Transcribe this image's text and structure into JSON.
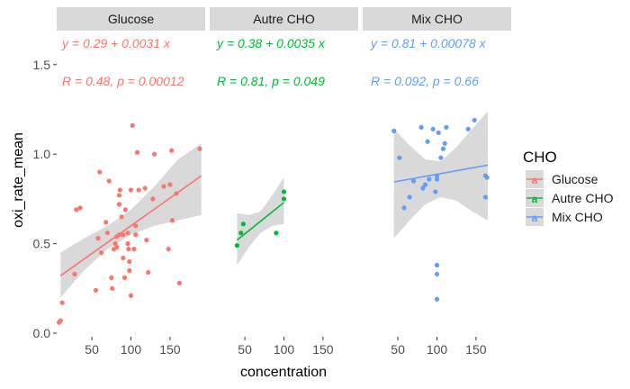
{
  "chart_data": {
    "type": "scatter",
    "facet_by": "CHO",
    "xlabel": "concentration",
    "ylabel": "oxi_rate_mean",
    "xlim": [
      5,
      195
    ],
    "ylim": [
      -0.02,
      1.68
    ],
    "x_ticks": [
      50,
      100,
      150
    ],
    "x_tick_labels": [
      "50",
      "100",
      "150"
    ],
    "y_ticks": [
      0.0,
      0.5,
      1.0,
      1.5
    ],
    "y_tick_labels": [
      "0.0",
      "0.5",
      "1.0",
      "1.5"
    ],
    "grid": false,
    "legend": {
      "title": "CHO",
      "position": "right",
      "entries": [
        "Glucose",
        "Autre CHO",
        "Mix CHO"
      ],
      "key_glyph": "a"
    },
    "panels": [
      {
        "name": "Glucose",
        "color": "#F8766D",
        "equation": "y = 0.29 + 0.0031 x",
        "stats": "R = 0.48, p = 0.00012",
        "fit": {
          "intercept": 0.29,
          "slope": 0.0031,
          "x_range": [
            10,
            190
          ]
        },
        "confidence_band": [
          {
            "x": 10,
            "lo": 0.2,
            "hi": 0.45
          },
          {
            "x": 40,
            "lo": 0.35,
            "hi": 0.53
          },
          {
            "x": 70,
            "lo": 0.47,
            "hi": 0.6
          },
          {
            "x": 100,
            "lo": 0.55,
            "hi": 0.69
          },
          {
            "x": 130,
            "lo": 0.6,
            "hi": 0.82
          },
          {
            "x": 160,
            "lo": 0.63,
            "hi": 0.97
          },
          {
            "x": 190,
            "lo": 0.66,
            "hi": 1.06
          }
        ],
        "points": [
          {
            "x": 10,
            "y": 0.07
          },
          {
            "x": 12,
            "y": 0.17
          },
          {
            "x": 8,
            "y": 0.06
          },
          {
            "x": 28,
            "y": 0.33
          },
          {
            "x": 30,
            "y": 0.69
          },
          {
            "x": 35,
            "y": 0.7
          },
          {
            "x": 55,
            "y": 0.24
          },
          {
            "x": 58,
            "y": 0.53
          },
          {
            "x": 60,
            "y": 0.9
          },
          {
            "x": 62,
            "y": 0.45
          },
          {
            "x": 68,
            "y": 0.62
          },
          {
            "x": 70,
            "y": 0.56
          },
          {
            "x": 72,
            "y": 0.85
          },
          {
            "x": 75,
            "y": 0.31
          },
          {
            "x": 76,
            "y": 0.25
          },
          {
            "x": 78,
            "y": 0.47
          },
          {
            "x": 80,
            "y": 0.5
          },
          {
            "x": 82,
            "y": 0.54
          },
          {
            "x": 82,
            "y": 0.48
          },
          {
            "x": 85,
            "y": 0.55
          },
          {
            "x": 85,
            "y": 0.72
          },
          {
            "x": 85,
            "y": 0.77
          },
          {
            "x": 86,
            "y": 0.8
          },
          {
            "x": 88,
            "y": 0.65
          },
          {
            "x": 90,
            "y": 0.55
          },
          {
            "x": 90,
            "y": 0.42
          },
          {
            "x": 92,
            "y": 0.31
          },
          {
            "x": 93,
            "y": 0.69
          },
          {
            "x": 96,
            "y": 0.56
          },
          {
            "x": 96,
            "y": 0.5
          },
          {
            "x": 97,
            "y": 0.47
          },
          {
            "x": 98,
            "y": 0.4
          },
          {
            "x": 98,
            "y": 0.35
          },
          {
            "x": 100,
            "y": 0.21
          },
          {
            "x": 100,
            "y": 0.8
          },
          {
            "x": 102,
            "y": 1.16
          },
          {
            "x": 104,
            "y": 0.47
          },
          {
            "x": 106,
            "y": 0.6
          },
          {
            "x": 106,
            "y": 0.55
          },
          {
            "x": 108,
            "y": 1.01
          },
          {
            "x": 110,
            "y": 0.8
          },
          {
            "x": 118,
            "y": 0.81
          },
          {
            "x": 120,
            "y": 0.52
          },
          {
            "x": 122,
            "y": 0.34
          },
          {
            "x": 128,
            "y": 0.75
          },
          {
            "x": 130,
            "y": 1.0
          },
          {
            "x": 142,
            "y": 0.82
          },
          {
            "x": 148,
            "y": 0.47
          },
          {
            "x": 150,
            "y": 0.83
          },
          {
            "x": 152,
            "y": 1.02
          },
          {
            "x": 153,
            "y": 0.63
          },
          {
            "x": 158,
            "y": 0.78
          },
          {
            "x": 162,
            "y": 0.28
          },
          {
            "x": 188,
            "y": 1.03
          }
        ]
      },
      {
        "name": "Autre CHO",
        "color": "#00BA38",
        "equation": "y = 0.38 + 0.0035 x",
        "stats": "R = 0.81, p = 0.049",
        "fit": {
          "intercept": 0.38,
          "slope": 0.0035,
          "x_range": [
            40,
            100
          ]
        },
        "confidence_band": [
          {
            "x": 40,
            "lo": 0.38,
            "hi": 0.67
          },
          {
            "x": 55,
            "lo": 0.48,
            "hi": 0.66
          },
          {
            "x": 70,
            "lo": 0.56,
            "hi": 0.68
          },
          {
            "x": 85,
            "lo": 0.6,
            "hi": 0.77
          },
          {
            "x": 100,
            "lo": 0.61,
            "hi": 0.87
          }
        ],
        "points": [
          {
            "x": 40,
            "y": 0.49
          },
          {
            "x": 45,
            "y": 0.56
          },
          {
            "x": 48,
            "y": 0.61
          },
          {
            "x": 90,
            "y": 0.56
          },
          {
            "x": 100,
            "y": 0.75
          },
          {
            "x": 100,
            "y": 0.79
          }
        ]
      },
      {
        "name": "Mix CHO",
        "color": "#619CFF",
        "equation": "y = 0.81 + 0.00078 x",
        "stats": "R = 0.092, p = 0.66",
        "fit": {
          "intercept": 0.81,
          "slope": 0.00078,
          "x_range": [
            45,
            165
          ]
        },
        "confidence_band": [
          {
            "x": 45,
            "lo": 0.53,
            "hi": 1.14
          },
          {
            "x": 65,
            "lo": 0.63,
            "hi": 1.05
          },
          {
            "x": 85,
            "lo": 0.72,
            "hi": 0.97
          },
          {
            "x": 105,
            "lo": 0.76,
            "hi": 0.96
          },
          {
            "x": 125,
            "lo": 0.74,
            "hi": 1.04
          },
          {
            "x": 145,
            "lo": 0.68,
            "hi": 1.14
          },
          {
            "x": 165,
            "lo": 0.63,
            "hi": 1.24
          }
        ],
        "points": [
          {
            "x": 45,
            "y": 1.13
          },
          {
            "x": 52,
            "y": 0.98
          },
          {
            "x": 58,
            "y": 0.7
          },
          {
            "x": 65,
            "y": 0.76
          },
          {
            "x": 70,
            "y": 0.85
          },
          {
            "x": 80,
            "y": 1.15
          },
          {
            "x": 82,
            "y": 0.81
          },
          {
            "x": 85,
            "y": 0.83
          },
          {
            "x": 88,
            "y": 1.07
          },
          {
            "x": 90,
            "y": 0.86
          },
          {
            "x": 95,
            "y": 1.14
          },
          {
            "x": 98,
            "y": 0.79
          },
          {
            "x": 100,
            "y": 0.38
          },
          {
            "x": 100,
            "y": 0.33
          },
          {
            "x": 100,
            "y": 0.19
          },
          {
            "x": 100,
            "y": 0.86
          },
          {
            "x": 100,
            "y": 0.88
          },
          {
            "x": 102,
            "y": 1.12
          },
          {
            "x": 105,
            "y": 0.98
          },
          {
            "x": 108,
            "y": 1.03
          },
          {
            "x": 110,
            "y": 1.06
          },
          {
            "x": 112,
            "y": 1.15
          },
          {
            "x": 140,
            "y": 1.14
          },
          {
            "x": 148,
            "y": 1.19
          },
          {
            "x": 162,
            "y": 0.76
          },
          {
            "x": 162,
            "y": 0.88
          },
          {
            "x": 164,
            "y": 0.87
          }
        ]
      }
    ]
  }
}
